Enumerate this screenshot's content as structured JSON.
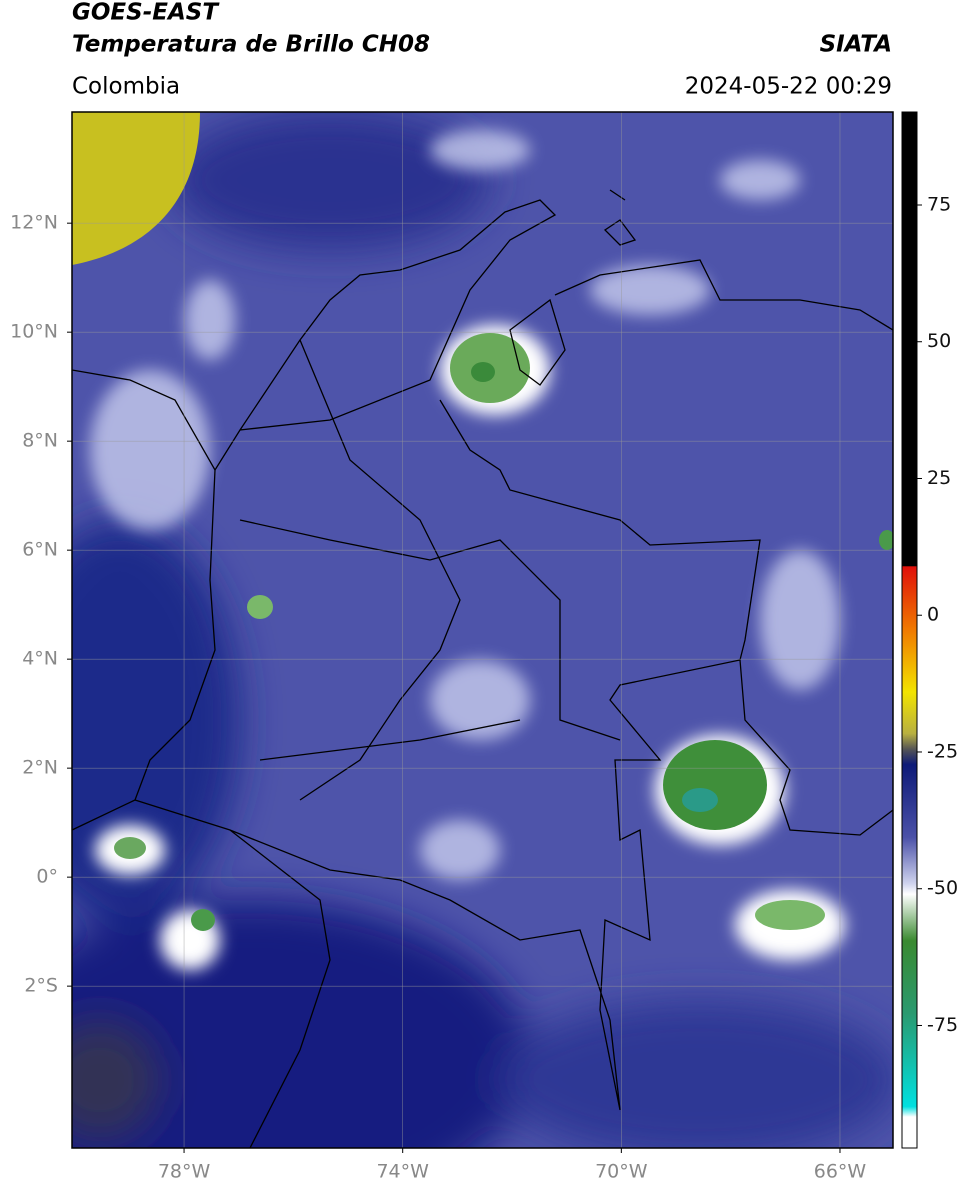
{
  "header": {
    "title_line1": "GOES-EAST",
    "title_line2": "Temperatura de Brillo CH08",
    "source": "SIATA",
    "region": "Colombia",
    "timestamp": "2024-05-22 00:29"
  },
  "map": {
    "lon_range": [
      -80.05,
      -65.03
    ],
    "lat_range": [
      -4.97,
      14.04
    ],
    "grid": true,
    "lat_ticks": [
      {
        "value": 12,
        "label": "12°N"
      },
      {
        "value": 10,
        "label": "10°N"
      },
      {
        "value": 8,
        "label": "8°N"
      },
      {
        "value": 6,
        "label": "6°N"
      },
      {
        "value": 4,
        "label": "4°N"
      },
      {
        "value": 2,
        "label": "2°N"
      },
      {
        "value": 0,
        "label": "0°"
      },
      {
        "value": -2,
        "label": "2°S"
      }
    ],
    "lon_ticks": [
      {
        "value": -78,
        "label": "78°W"
      },
      {
        "value": -74,
        "label": "74°W"
      },
      {
        "value": -70,
        "label": "70°W"
      },
      {
        "value": -66,
        "label": "66°W"
      }
    ]
  },
  "colorbar": {
    "range": [
      -97.4,
      92
    ],
    "ticks": [
      75,
      50,
      25,
      0,
      -25,
      -50,
      -75
    ]
  }
}
